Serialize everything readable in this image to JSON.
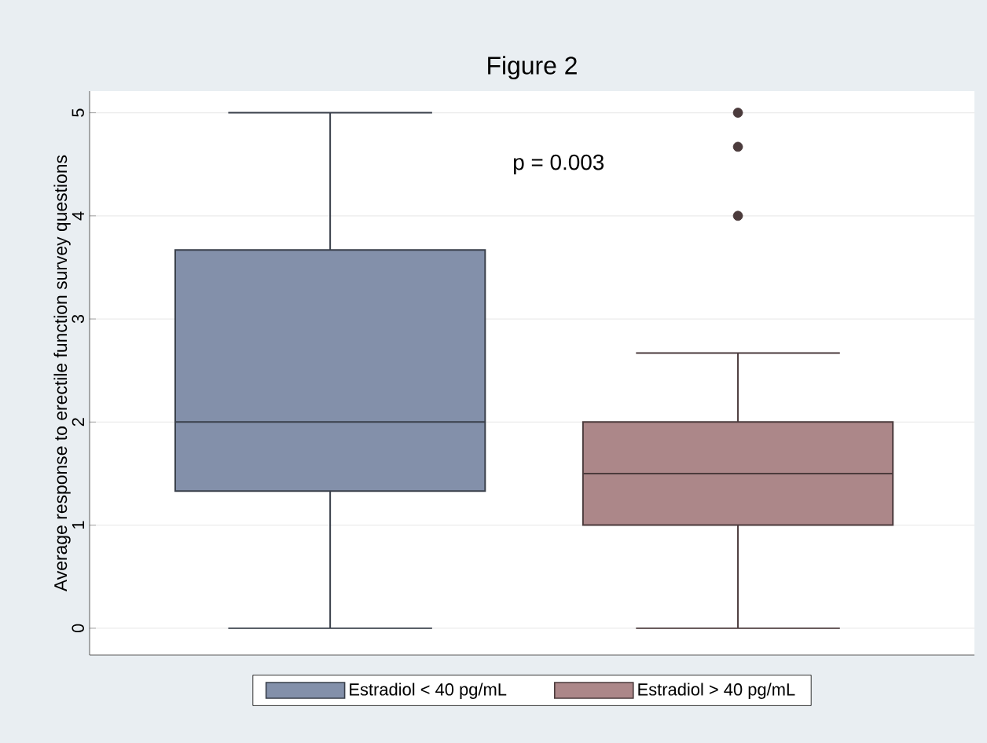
{
  "chart_data": {
    "type": "box",
    "title": "Figure 2",
    "ylabel": "Average response to erectile function survey questions",
    "categories": [
      null
    ],
    "ylim": [
      -0.26,
      5.21
    ],
    "yticks": [
      0,
      1,
      2,
      3,
      4,
      5
    ],
    "grid": "y",
    "legend": "bottom",
    "annotations": [
      "p = 0.003"
    ],
    "series": [
      {
        "name": "Estradiol < 40 pg/mL",
        "color": "#8390aa",
        "boxes": [
          {
            "low": 0,
            "q1": 1.33,
            "median": 2,
            "q3": 3.67,
            "high": 5
          }
        ]
      },
      {
        "name": "Estradiol > 40 pg/mL",
        "color": "#ac8789",
        "boxes": [
          {
            "low": 0,
            "q1": 1,
            "median": 1.5,
            "q3": 2,
            "high": 2.67,
            "outliers": [
              4,
              4.67,
              5
            ]
          }
        ]
      }
    ]
  }
}
